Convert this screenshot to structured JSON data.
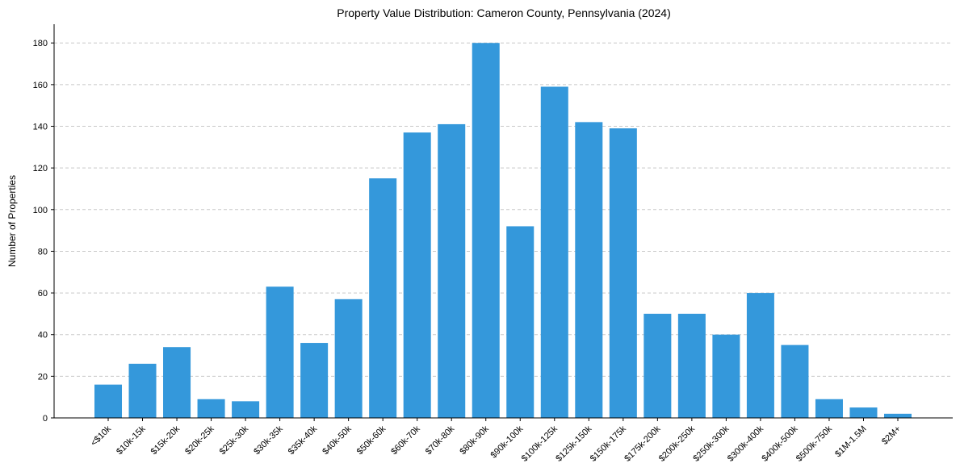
{
  "chart_data": {
    "type": "bar",
    "title": "Property Value Distribution: Cameron County, Pennsylvania (2024)",
    "xlabel": "",
    "ylabel": "Number of Properties",
    "categories": [
      "<$10k",
      "$10k-15k",
      "$15k-20k",
      "$20k-25k",
      "$25k-30k",
      "$30k-35k",
      "$35k-40k",
      "$40k-50k",
      "$50k-60k",
      "$60k-70k",
      "$70k-80k",
      "$80k-90k",
      "$90k-100k",
      "$100k-125k",
      "$125k-150k",
      "$150k-175k",
      "$175k-200k",
      "$200k-250k",
      "$250k-300k",
      "$300k-400k",
      "$400k-500k",
      "$500k-750k",
      "$1M-1.5M",
      "$2M+"
    ],
    "values": [
      16,
      26,
      34,
      9,
      8,
      63,
      36,
      57,
      115,
      137,
      141,
      180,
      92,
      159,
      142,
      139,
      50,
      50,
      40,
      60,
      35,
      9,
      5,
      2
    ],
    "ylim": [
      0,
      189
    ],
    "yticks": [
      0,
      20,
      40,
      60,
      80,
      100,
      120,
      140,
      160,
      180
    ],
    "grid": "y-dashed",
    "bar_color": "#3498db"
  }
}
